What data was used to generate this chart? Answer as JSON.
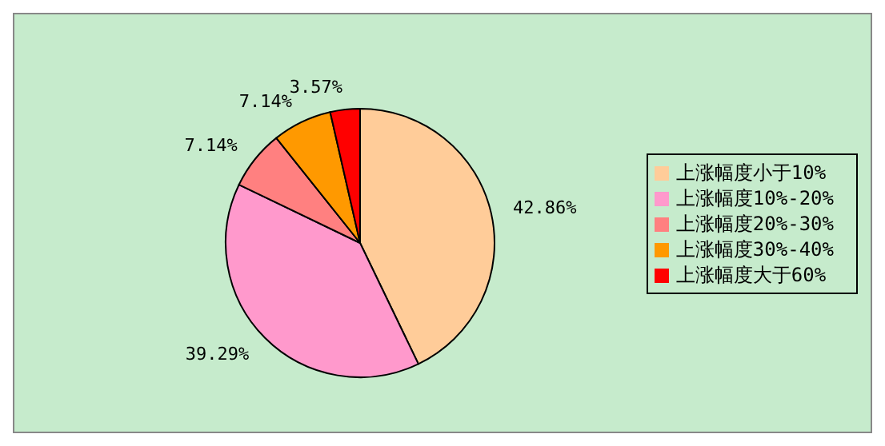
{
  "chart_data": {
    "type": "pie",
    "categories": [
      "上涨幅度小于10%",
      "上涨幅度10%-20%",
      "上涨幅度20%-30%",
      "上涨幅度30%-40%",
      "上涨幅度大于60%"
    ],
    "values": [
      42.86,
      39.29,
      7.14,
      7.14,
      3.57
    ],
    "colors": [
      "#ffcc99",
      "#ff99cc",
      "#ff8080",
      "#ff9900",
      "#ff0000"
    ],
    "value_labels": [
      "42.86%",
      "39.29%",
      "7.14%",
      "7.14%",
      "3.57%"
    ],
    "legend": "right"
  }
}
